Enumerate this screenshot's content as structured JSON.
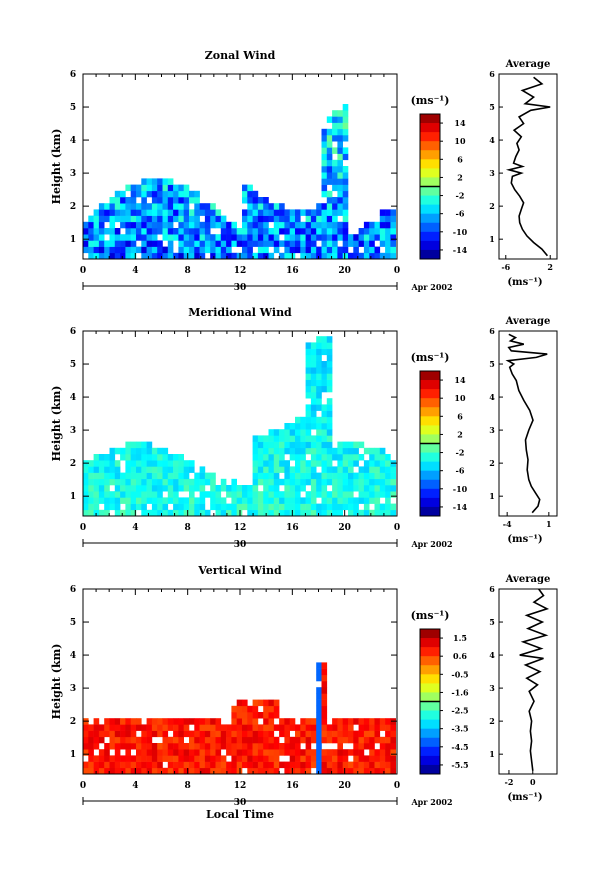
{
  "chart_data": [
    {
      "type": "heatmap",
      "title": "Zonal Wind",
      "ylabel": "Height (km)",
      "xlabel": "",
      "x_ticks": [
        "0",
        "4",
        "8",
        "12",
        "16",
        "20",
        "0"
      ],
      "y_ticks": [
        "1",
        "2",
        "3",
        "4",
        "5",
        "6"
      ],
      "date_axis": {
        "day": "30",
        "month": "Apr 2002"
      },
      "colorbar": {
        "unit": "(ms⁻¹)",
        "ticks": [
          "14",
          "10",
          "6",
          "2",
          "-2",
          "-6",
          "-10",
          "-14"
        ],
        "range": [
          -16,
          16
        ]
      },
      "average_profile": {
        "title": "Average",
        "unit": "(ms⁻¹)",
        "x_ticks": [
          "-6",
          "2"
        ],
        "y_ticks": [
          "1",
          "2",
          "3",
          "4",
          "5",
          "6"
        ],
        "height": [
          0.5,
          0.7,
          0.9,
          1.1,
          1.3,
          1.5,
          1.7,
          1.9,
          2.1,
          2.3,
          2.5,
          2.7,
          2.9,
          3.0,
          3.1,
          3.2,
          3.3,
          3.5,
          3.7,
          3.9,
          4.1,
          4.3,
          4.5,
          4.7,
          4.9,
          5.0,
          5.1,
          5.3,
          5.5,
          5.7,
          5.9
        ],
        "value": [
          1.5,
          0.5,
          -1.0,
          -2.2,
          -3.0,
          -3.5,
          -3.6,
          -3.2,
          -2.8,
          -3.5,
          -4.4,
          -5.0,
          -4.8,
          -3.2,
          -5.4,
          -3.0,
          -4.6,
          -4.2,
          -3.6,
          -4.0,
          -3.2,
          -4.5,
          -2.8,
          -3.6,
          -1.5,
          2.0,
          -2.5,
          -1.0,
          -3.0,
          0.5,
          -1.0
        ]
      }
    },
    {
      "type": "heatmap",
      "title": "Meridional Wind",
      "ylabel": "Height (km)",
      "xlabel": "",
      "x_ticks": [
        "0",
        "4",
        "8",
        "12",
        "16",
        "20",
        "0"
      ],
      "y_ticks": [
        "1",
        "2",
        "3",
        "4",
        "5",
        "6"
      ],
      "date_axis": {
        "day": "30",
        "month": "Apr 2002"
      },
      "colorbar": {
        "unit": "(ms⁻¹)",
        "ticks": [
          "14",
          "10",
          "6",
          "2",
          "-2",
          "-6",
          "-10",
          "-14"
        ],
        "range": [
          -16,
          16
        ]
      },
      "average_profile": {
        "title": "Average",
        "unit": "(ms⁻¹)",
        "x_ticks": [
          "-4",
          "1"
        ],
        "y_ticks": [
          "1",
          "2",
          "3",
          "4",
          "5",
          "6"
        ],
        "height": [
          0.5,
          0.7,
          0.9,
          1.1,
          1.3,
          1.5,
          1.8,
          2.1,
          2.4,
          2.7,
          3.0,
          3.3,
          3.6,
          3.9,
          4.2,
          4.5,
          4.7,
          4.9,
          5.0,
          5.1,
          5.2,
          5.3,
          5.4,
          5.5,
          5.6,
          5.7,
          5.8,
          5.9
        ],
        "value": [
          -1.0,
          -0.3,
          -0.1,
          -0.6,
          -1.1,
          -1.4,
          -1.6,
          -1.5,
          -1.7,
          -1.8,
          -1.4,
          -0.9,
          -1.3,
          -2.0,
          -2.6,
          -2.9,
          -3.4,
          -3.7,
          -3.2,
          -3.9,
          -0.5,
          0.8,
          -3.5,
          -3.8,
          -2.0,
          -3.6,
          -3.0,
          -3.8
        ]
      }
    },
    {
      "type": "heatmap",
      "title": "Vertical Wind",
      "ylabel": "Height (km)",
      "xlabel": "Local Time",
      "x_ticks": [
        "0",
        "4",
        "8",
        "12",
        "16",
        "20",
        "0"
      ],
      "y_ticks": [
        "1",
        "2",
        "3",
        "4",
        "5",
        "6"
      ],
      "date_axis": {
        "day": "30",
        "month": "Apr 2002"
      },
      "colorbar": {
        "unit": "(ms⁻¹)",
        "ticks": [
          "1.5",
          "0.6",
          "-0.5",
          "-1.6",
          "-2.5",
          "-3.5",
          "-4.5",
          "-5.5"
        ],
        "range": [
          -6,
          2
        ]
      },
      "average_profile": {
        "title": "Average",
        "unit": "(ms⁻¹)",
        "x_ticks": [
          "-2",
          "0"
        ],
        "y_ticks": [
          "1",
          "2",
          "3",
          "4",
          "5",
          "6"
        ],
        "height": [
          0.5,
          0.8,
          1.1,
          1.4,
          1.7,
          2.0,
          2.3,
          2.6,
          2.9,
          3.1,
          3.3,
          3.5,
          3.7,
          3.9,
          4.0,
          4.2,
          4.4,
          4.6,
          4.8,
          5.0,
          5.2,
          5.4,
          5.6,
          5.8,
          6.0
        ],
        "value": [
          0.0,
          -0.1,
          -0.2,
          -0.1,
          -0.2,
          -0.1,
          -0.3,
          0.1,
          -0.3,
          0.4,
          -0.5,
          0.6,
          -0.6,
          0.9,
          -1.1,
          0.7,
          -0.8,
          1.1,
          -0.4,
          0.8,
          -0.5,
          1.2,
          0.1,
          0.9,
          0.5
        ]
      }
    }
  ]
}
